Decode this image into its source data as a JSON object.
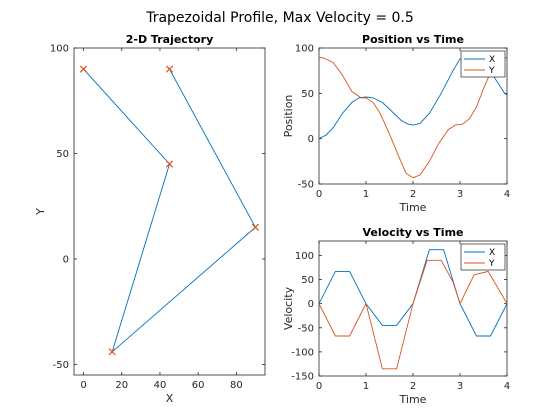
{
  "figure": {
    "suptitle": "Trapezoidal Profile, Max Velocity = 0.5"
  },
  "colors": {
    "x_series": "#0072BD",
    "y_series": "#D95319",
    "waypoint": "#D95319"
  },
  "chart_data": [
    {
      "id": "trajectory",
      "type": "line",
      "title": "2-D Trajectory",
      "xlabel": "X",
      "ylabel": "Y",
      "xlim": [
        -5,
        95
      ],
      "ylim": [
        -55,
        100
      ],
      "xticks": [
        0,
        20,
        40,
        60,
        80
      ],
      "yticks": [
        -50,
        0,
        50,
        100
      ],
      "path": [
        [
          0,
          90
        ],
        [
          45,
          45
        ],
        [
          15,
          -44
        ],
        [
          90,
          15
        ],
        [
          45,
          90
        ]
      ],
      "waypoints": [
        [
          0,
          90
        ],
        [
          45,
          45
        ],
        [
          15,
          -44
        ],
        [
          90,
          15
        ],
        [
          45,
          90
        ]
      ],
      "waypoint_marker": "x"
    },
    {
      "id": "position",
      "type": "line",
      "title": "Position vs Time",
      "xlabel": "Time",
      "ylabel": "Position",
      "xlim": [
        0,
        4
      ],
      "ylim": [
        -50,
        100
      ],
      "xticks": [
        0,
        1,
        2,
        3,
        4
      ],
      "yticks": [
        -50,
        0,
        50,
        100
      ],
      "legend_position": "top-right",
      "series": [
        {
          "name": "X",
          "points": [
            [
              0,
              0
            ],
            [
              0.15,
              4
            ],
            [
              0.3,
              12
            ],
            [
              0.5,
              28
            ],
            [
              0.7,
              40
            ],
            [
              0.85,
              45
            ],
            [
              1.0,
              46
            ],
            [
              1.15,
              45
            ],
            [
              1.35,
              40
            ],
            [
              1.55,
              30
            ],
            [
              1.75,
              20
            ],
            [
              1.9,
              16
            ],
            [
              2.0,
              15
            ],
            [
              2.15,
              17
            ],
            [
              2.35,
              28
            ],
            [
              2.6,
              50
            ],
            [
              2.85,
              75
            ],
            [
              3.0,
              88
            ],
            [
              3.2,
              89
            ],
            [
              3.4,
              86
            ],
            [
              3.55,
              80
            ],
            [
              3.7,
              70
            ],
            [
              3.85,
              58
            ],
            [
              3.95,
              50
            ],
            [
              4.0,
              48
            ]
          ]
        },
        {
          "name": "Y",
          "points": [
            [
              0,
              90
            ],
            [
              0.1,
              89
            ],
            [
              0.3,
              84
            ],
            [
              0.5,
              70
            ],
            [
              0.7,
              52
            ],
            [
              0.9,
              45
            ],
            [
              1.0,
              45
            ],
            [
              1.15,
              40
            ],
            [
              1.3,
              28
            ],
            [
              1.5,
              5
            ],
            [
              1.7,
              -20
            ],
            [
              1.85,
              -38
            ],
            [
              2.0,
              -43
            ],
            [
              2.15,
              -40
            ],
            [
              2.35,
              -25
            ],
            [
              2.55,
              -5
            ],
            [
              2.75,
              10
            ],
            [
              2.9,
              15
            ],
            [
              3.05,
              16
            ],
            [
              3.2,
              22
            ],
            [
              3.35,
              35
            ],
            [
              3.5,
              55
            ],
            [
              3.65,
              73
            ],
            [
              3.8,
              85
            ],
            [
              4.0,
              90
            ]
          ]
        }
      ]
    },
    {
      "id": "velocity",
      "type": "line",
      "title": "Velocity vs Time",
      "xlabel": "Time",
      "ylabel": "Velocity",
      "xlim": [
        0,
        4
      ],
      "ylim": [
        -150,
        130
      ],
      "xticks": [
        0,
        1,
        2,
        3,
        4
      ],
      "yticks": [
        -150,
        -100,
        -50,
        0,
        50,
        100
      ],
      "legend_position": "top-right",
      "series": [
        {
          "name": "X",
          "points": [
            [
              0,
              0
            ],
            [
              0.35,
              67
            ],
            [
              0.65,
              67
            ],
            [
              1.0,
              0
            ],
            [
              1.35,
              -45
            ],
            [
              1.65,
              -45
            ],
            [
              2.0,
              0
            ],
            [
              2.35,
              112
            ],
            [
              2.65,
              112
            ],
            [
              3.0,
              0
            ],
            [
              3.35,
              -67
            ],
            [
              3.65,
              -67
            ],
            [
              4.0,
              0
            ]
          ]
        },
        {
          "name": "Y",
          "points": [
            [
              0,
              0
            ],
            [
              0.35,
              -67
            ],
            [
              0.65,
              -67
            ],
            [
              1.0,
              0
            ],
            [
              1.35,
              -135
            ],
            [
              1.65,
              -135
            ],
            [
              2.0,
              0
            ],
            [
              2.3,
              90
            ],
            [
              2.6,
              90
            ],
            [
              2.85,
              45
            ],
            [
              3.0,
              0
            ],
            [
              3.3,
              60
            ],
            [
              3.6,
              67
            ],
            [
              4.0,
              0
            ]
          ]
        }
      ]
    }
  ]
}
